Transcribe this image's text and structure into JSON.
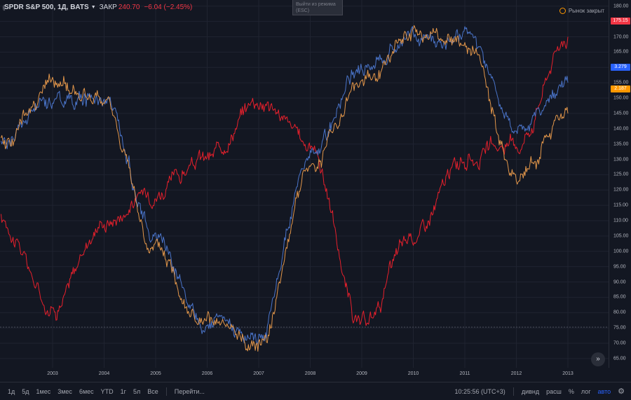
{
  "legend": {
    "symbol": "SPDR S&P 500, 1Д, BATS",
    "close_label": "ЗАКР",
    "close_value": "240.70",
    "change": "−6.04 (−2.45%)",
    "menu_icon": "chevron-down-icon"
  },
  "overlay": {
    "exit_fullscreen": "Выйти из режима (ESC)",
    "market_status": "Рынок закрыт"
  },
  "price_axis": {
    "ticks": [
      "180.00",
      "175.00",
      "170.00",
      "165.00",
      "160.00",
      "155.00",
      "150.00",
      "145.00",
      "140.00",
      "135.00",
      "130.00",
      "125.00",
      "120.00",
      "115.00",
      "110.00",
      "105.00",
      "100.00",
      "95.00",
      "90.00",
      "85.00",
      "80.00",
      "75.00",
      "70.00",
      "65.00"
    ],
    "tags": [
      {
        "text": "175.15",
        "color": "#f23645"
      },
      {
        "text": "3.279",
        "color": "#2962ff"
      },
      {
        "text": "2.187",
        "color": "#ff9800"
      }
    ]
  },
  "time_axis": {
    "labels": [
      "2003",
      "2004",
      "2005",
      "2006",
      "2007",
      "2008",
      "2009",
      "2010",
      "2011",
      "2012",
      "2013"
    ]
  },
  "toolbar": {
    "ranges": [
      "1д",
      "5д",
      "1мес",
      "3мес",
      "6мес",
      "YTD",
      "1г",
      "5л",
      "Все"
    ],
    "goto": "Перейти...",
    "time": "10:25:56 (UTC+3)",
    "divid": "дивнд",
    "ext": "расш",
    "percent": "%",
    "log": "лог",
    "auto": "авто"
  },
  "chart_data": {
    "type": "line",
    "ylim": [
      62,
      182
    ],
    "x_range": [
      "2002",
      "2013"
    ],
    "grid": true,
    "series": [
      {
        "color": "#e6202c",
        "x": [
          "2002",
          "2003",
          "2004",
          "2005",
          "2006",
          "2007",
          "2008",
          "2009",
          "2010",
          "2011",
          "2012",
          "2013"
        ],
        "values": [
          110,
          82,
          110,
          120,
          130,
          150,
          135,
          75,
          105,
          130,
          135,
          170
        ]
      },
      {
        "color": "#4a74c9",
        "x": [
          "2002",
          "2003",
          "2004",
          "2005",
          "2006",
          "2007",
          "2008",
          "2009",
          "2010",
          "2011",
          "2012",
          "2013"
        ],
        "values": [
          135,
          150,
          150,
          105,
          77,
          72,
          130,
          160,
          170,
          170,
          140,
          155
        ]
      },
      {
        "color": "#e2964a",
        "x": [
          "2002",
          "2003",
          "2004",
          "2005",
          "2006",
          "2007",
          "2008",
          "2009",
          "2010",
          "2011",
          "2012",
          "2013"
        ],
        "values": [
          135,
          155,
          148,
          100,
          75,
          70,
          128,
          155,
          170,
          168,
          125,
          145
        ]
      }
    ]
  }
}
